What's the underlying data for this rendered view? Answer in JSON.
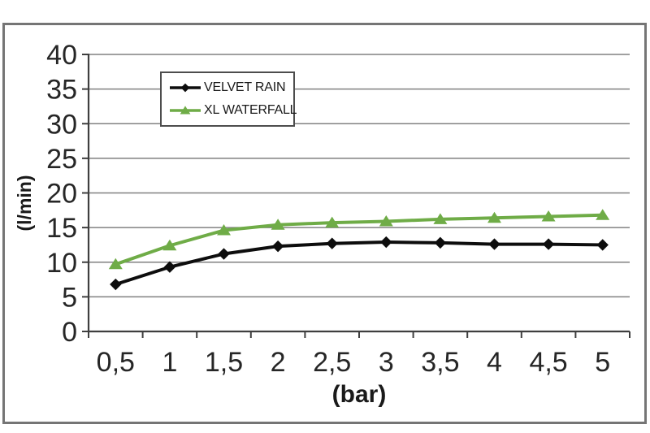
{
  "chart_data": {
    "type": "line",
    "title": "",
    "xlabel": "(bar)",
    "ylabel": "(l/min)",
    "categories": [
      "0,5",
      "1",
      "1,5",
      "2",
      "2,5",
      "3",
      "3,5",
      "4",
      "4,5",
      "5"
    ],
    "x_values": [
      0.5,
      1,
      1.5,
      2,
      2.5,
      3,
      3.5,
      4,
      4.5,
      5
    ],
    "ylim": [
      0,
      40
    ],
    "y_tick_step": 5,
    "y_tick_labels": [
      "0",
      "5",
      "10",
      "15",
      "20",
      "25",
      "30",
      "35",
      "40"
    ],
    "grid": true,
    "legend_position": "inside-top-center",
    "grid_color": "#808080",
    "axis_color": "#3f3f3f",
    "text_color": "#262626",
    "series": [
      {
        "name": "VELVET RAIN",
        "color": "#0d0d0d",
        "marker": "diamond",
        "values": [
          6.8,
          9.3,
          11.2,
          12.3,
          12.7,
          12.9,
          12.8,
          12.6,
          12.6,
          12.5
        ]
      },
      {
        "name": "XL WATERFALL",
        "color": "#6fac47",
        "marker": "triangle",
        "values": [
          9.7,
          12.4,
          14.6,
          15.4,
          15.7,
          15.9,
          16.2,
          16.4,
          16.6,
          16.8
        ]
      }
    ]
  }
}
